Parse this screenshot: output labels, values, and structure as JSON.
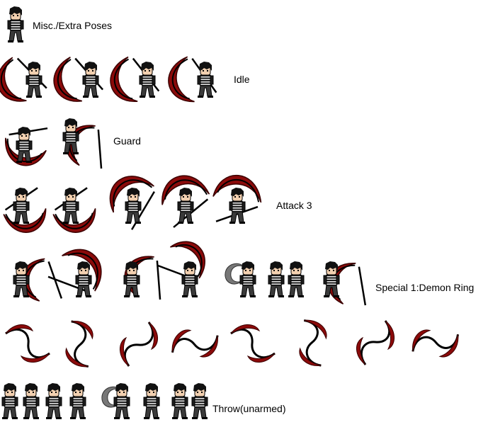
{
  "sheet": {
    "rows": [
      {
        "name": "misc",
        "label": "Misc./Extra Poses"
      },
      {
        "name": "idle",
        "label": "Idle"
      },
      {
        "name": "guard",
        "label": "Guard"
      },
      {
        "name": "attack",
        "label": "Attack 3"
      },
      {
        "name": "special",
        "label": "Special 1:Demon Ring"
      },
      {
        "name": "throw",
        "label": "Throw(unarmed)"
      }
    ]
  },
  "colors": {
    "background": "#ffffff",
    "scythe_red": "#8b0a0a",
    "scythe_dark": "#3a0000",
    "outline": "#000000",
    "shirt_stripe": "#e8e8e8",
    "shirt_dark": "#1c1c1c",
    "pants": "#3a3a3a",
    "skin": "#f2d0b0",
    "hair": "#111111",
    "shadow_swirl": "#777777"
  },
  "icons": {
    "character": "character-sprite-icon",
    "scythe": "scythe-sprite-icon",
    "swirl": "shadow-swirl-icon"
  }
}
